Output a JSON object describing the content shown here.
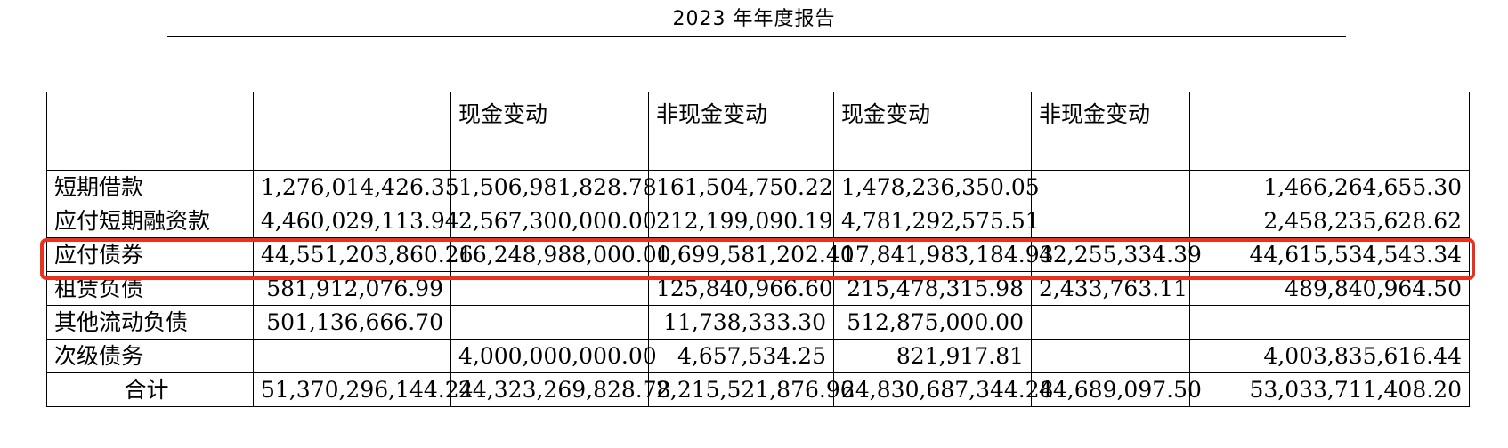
{
  "header": {
    "title": "2023 年年度报告"
  },
  "table": {
    "column_headers": [
      "",
      "",
      "现金变动",
      "非现金变动",
      "现金变动",
      "非现金变动",
      ""
    ],
    "rows": [
      {
        "label": "短期借款",
        "cells": [
          "1,276,014,426.35",
          "1,506,981,828.78",
          "161,504,750.22",
          "1,478,236,350.05",
          "",
          "1,466,264,655.30"
        ]
      },
      {
        "label": "应付短期融资款",
        "cells": [
          "4,460,029,113.94",
          "2,567,300,000.00",
          "212,199,090.19",
          "4,781,292,575.51",
          "",
          "2,458,235,628.62"
        ]
      },
      {
        "label": "应付债券",
        "cells": [
          "44,551,203,860.26",
          "16,248,988,000.00",
          "1,699,581,202.40",
          "17,841,983,184.93",
          "42,255,334.39",
          "44,615,534,543.34"
        ]
      },
      {
        "label": "租赁负债",
        "cells": [
          "581,912,076.99",
          "",
          "125,840,966.60",
          "215,478,315.98",
          "2,433,763.11",
          "489,840,964.50"
        ]
      },
      {
        "label": "其他流动负债",
        "cells": [
          "501,136,666.70",
          "",
          "11,738,333.30",
          "512,875,000.00",
          "",
          ""
        ]
      },
      {
        "label": "次级债务",
        "cells": [
          "",
          "4,000,000,000.00",
          "4,657,534.25",
          "821,917.81",
          "",
          "4,003,835,616.44"
        ]
      },
      {
        "label": "合计",
        "cells": [
          "51,370,296,144.24",
          "24,323,269,828.78",
          "2,215,521,876.96",
          "24,830,687,344.28",
          "44,689,097.50",
          "53,033,711,408.20"
        ]
      }
    ],
    "highlighted_row_label": "应付债券"
  },
  "colors": {
    "highlight": "#e8321f",
    "border": "#000000",
    "background": "#ffffff"
  }
}
